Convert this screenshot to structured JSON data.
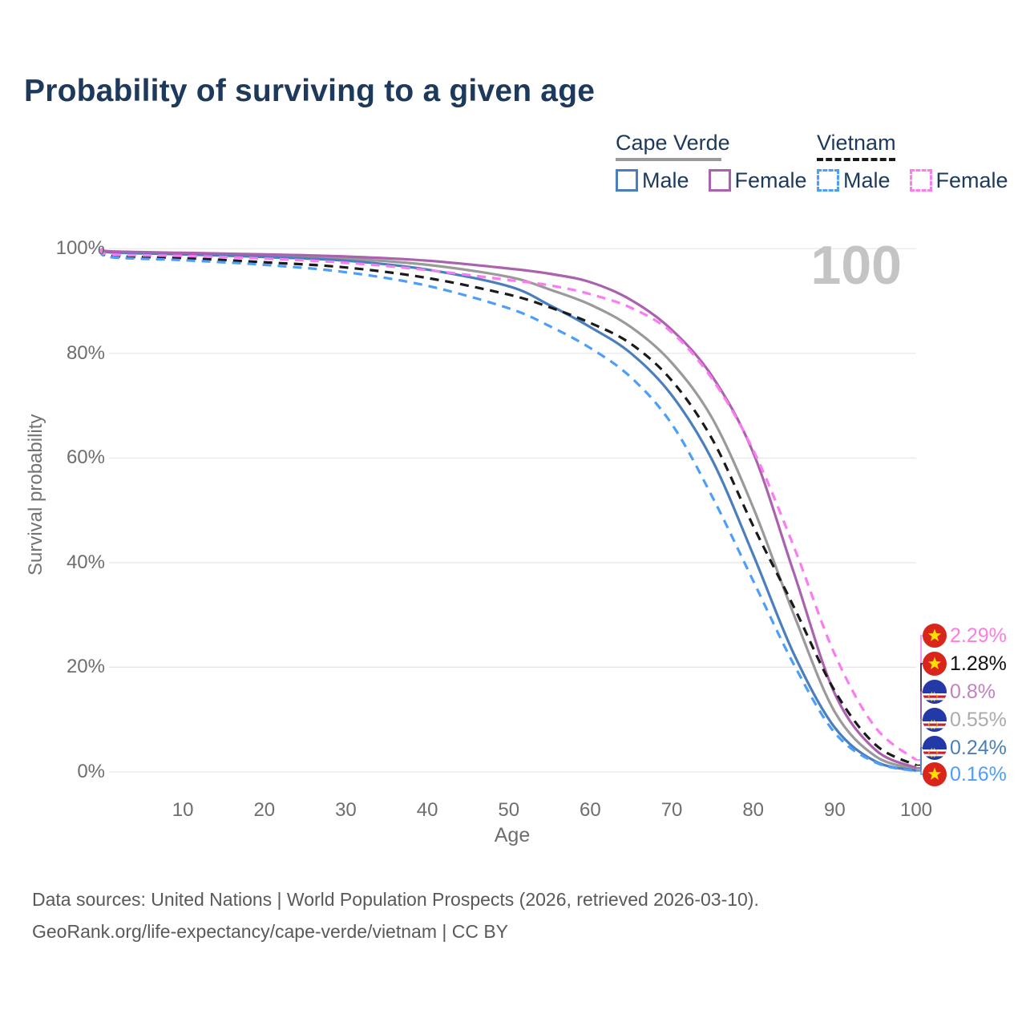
{
  "title": "Probability of surviving to a given age",
  "watermark_age": "100",
  "colors": {
    "title": "#1d395c",
    "cape_verde_male": "#4a7ebd",
    "cape_verde_female": "#aa61ae",
    "cape_verde_both": "#9a9a9a",
    "vietnam_male": "#4d9ef9",
    "vietnam_female": "#fb7cf0",
    "vietnam_both": "#1a1a1a",
    "grid": "#e6e6e6",
    "axis_text": "#6e6e6e",
    "watermark": "#c4c4c4",
    "footer_text": "#595959",
    "vietnam_flag_red": "#da251d",
    "vietnam_flag_star": "#ffdf00",
    "cape_verde_flag_blue": "#2439a8",
    "cape_verde_flag_red": "#cf2027"
  },
  "legend": {
    "groups": [
      {
        "country": "Cape Verde",
        "line_style": "solid",
        "male_label": "Male",
        "female_label": "Female"
      },
      {
        "country": "Vietnam",
        "line_style": "dashed",
        "male_label": "Male",
        "female_label": "Female"
      }
    ]
  },
  "chart_data": {
    "type": "line",
    "title": "Probability of surviving to a given age",
    "xlabel": "Age",
    "ylabel": "Survival probability",
    "xlim": [
      0,
      100
    ],
    "ylim": [
      0,
      100
    ],
    "grid": "horizontal",
    "legend_position": "top-right",
    "x_ticks": [
      {
        "value": 10,
        "label": "10"
      },
      {
        "value": 20,
        "label": "20"
      },
      {
        "value": 30,
        "label": "30"
      },
      {
        "value": 40,
        "label": "40"
      },
      {
        "value": 50,
        "label": "50"
      },
      {
        "value": 60,
        "label": "60"
      },
      {
        "value": 70,
        "label": "70"
      },
      {
        "value": 80,
        "label": "80"
      },
      {
        "value": 90,
        "label": "90"
      },
      {
        "value": 100,
        "label": "100"
      }
    ],
    "y_ticks": [
      {
        "value": 0,
        "label": "0%"
      },
      {
        "value": 20,
        "label": "20%"
      },
      {
        "value": 40,
        "label": "40%"
      },
      {
        "value": 60,
        "label": "60%"
      },
      {
        "value": 80,
        "label": "80%"
      },
      {
        "value": 100,
        "label": "100%"
      }
    ],
    "x": [
      0,
      1,
      10,
      20,
      30,
      40,
      50,
      55,
      60,
      65,
      70,
      75,
      80,
      85,
      90,
      95,
      100
    ],
    "series": [
      {
        "key": "cape_verde_both",
        "name": "Cape Verde (both sexes)",
        "country": "Cape Verde",
        "style": "solid",
        "color": "#9a9a9a",
        "values": [
          100,
          99.4,
          99.0,
          98.6,
          98.1,
          96.9,
          94.6,
          92.2,
          89.3,
          85.0,
          78.2,
          67.5,
          50.5,
          30.0,
          11.5,
          3.0,
          0.55
        ]
      },
      {
        "key": "cape_verde_male",
        "name": "Cape Verde Male",
        "country": "Cape Verde",
        "style": "solid",
        "color": "#4a7ebd",
        "values": [
          100,
          99.3,
          98.9,
          98.4,
          97.7,
          96.0,
          92.8,
          89.2,
          85.0,
          80.0,
          72.0,
          59.5,
          41.5,
          22.5,
          8.5,
          2.0,
          0.24
        ]
      },
      {
        "key": "cape_verde_female",
        "name": "Cape Verde Female",
        "country": "Cape Verde",
        "style": "solid",
        "color": "#aa61ae",
        "values": [
          100,
          99.5,
          99.2,
          98.9,
          98.5,
          97.7,
          96.2,
          95.2,
          93.6,
          90.2,
          84.5,
          75.5,
          61.0,
          38.0,
          15.0,
          4.2,
          0.8
        ]
      },
      {
        "key": "vietnam_both",
        "name": "Vietnam (both sexes)",
        "country": "Vietnam",
        "style": "dashed",
        "color": "#1a1a1a",
        "values": [
          100,
          98.65,
          98.2,
          97.4,
          96.4,
          94.4,
          91.2,
          88.8,
          85.8,
          81.8,
          74.8,
          63.5,
          47.0,
          31.5,
          15.5,
          5.2,
          1.28
        ]
      },
      {
        "key": "vietnam_male",
        "name": "Vietnam Male",
        "country": "Vietnam",
        "style": "dashed",
        "color": "#4d9ef9",
        "values": [
          100,
          98.4,
          97.8,
          96.9,
          95.5,
          92.9,
          88.6,
          85.2,
          81.0,
          75.4,
          66.5,
          52.5,
          36.5,
          20.5,
          7.5,
          1.8,
          0.16
        ]
      },
      {
        "key": "vietnam_female",
        "name": "Vietnam Female",
        "country": "Vietnam",
        "style": "dashed",
        "color": "#fb7cf0",
        "values": [
          100,
          98.9,
          98.6,
          98.1,
          97.3,
          95.9,
          94.0,
          93.0,
          91.3,
          88.7,
          84.0,
          75.0,
          61.5,
          43.0,
          22.5,
          8.5,
          2.29
        ]
      }
    ]
  },
  "end_labels": [
    {
      "value": "2.29%",
      "series_key": "vietnam_female",
      "flag": "vietnam",
      "label_color": "#ff7ce0"
    },
    {
      "value": "1.28%",
      "series_key": "vietnam_both",
      "flag": "vietnam",
      "label_color": "#111111"
    },
    {
      "value": "0.8%",
      "series_key": "cape_verde_female",
      "flag": "cape-verde",
      "label_color": "#c183bd"
    },
    {
      "value": "0.55%",
      "series_key": "cape_verde_both",
      "flag": "cape-verde",
      "label_color": "#ababab"
    },
    {
      "value": "0.24%",
      "series_key": "cape_verde_male",
      "flag": "cape-verde",
      "label_color": "#4a7ebd"
    },
    {
      "value": "0.16%",
      "series_key": "vietnam_male",
      "flag": "vietnam",
      "label_color": "#4d9ef9"
    }
  ],
  "footer": {
    "line1": "Data sources: United Nations | World Population Prospects (2026, retrieved 2026-03-10).",
    "line2": "GeoRank.org/life-expectancy/cape-verde/vietnam | CC BY"
  }
}
